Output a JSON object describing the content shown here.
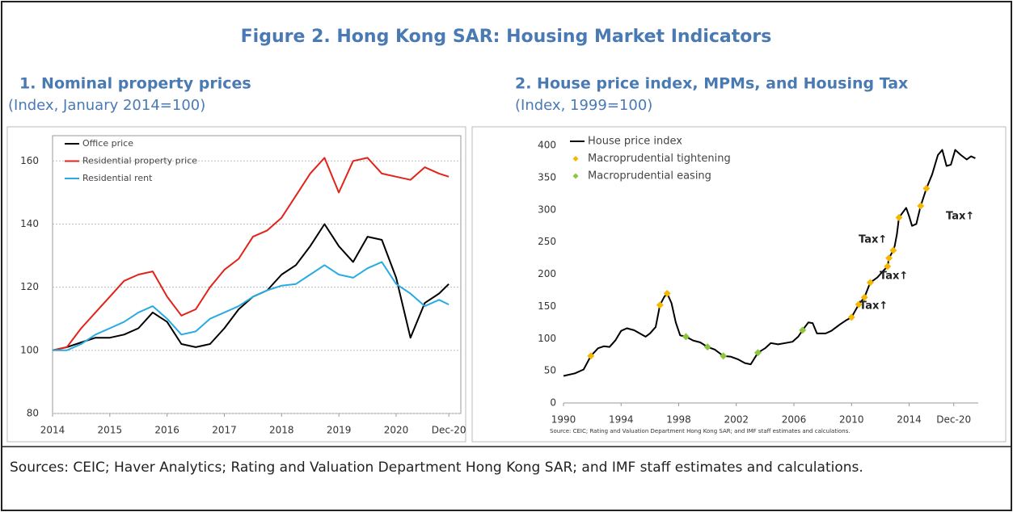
{
  "title": "Figure 2. Hong Kong SAR: Housing Market  Indicators",
  "sources": "Sources: CEIC; Haver Analytics; Rating and Valuation Department Hong Kong SAR; and IMF staff estimates and calculations.",
  "chart_data": [
    {
      "type": "line",
      "title": "1. Nominal property prices",
      "subtitle": "(Index, January 2014=100)",
      "x": [
        2014,
        2014.25,
        2014.5,
        2014.75,
        2015,
        2015.25,
        2015.5,
        2015.75,
        2016,
        2016.25,
        2016.5,
        2016.75,
        2017,
        2017.25,
        2017.5,
        2017.75,
        2018,
        2018.25,
        2018.5,
        2018.75,
        2019,
        2019.25,
        2019.5,
        2019.75,
        2020,
        2020.25,
        2020.5,
        2020.75,
        2020.92
      ],
      "series": [
        {
          "name": "Office price",
          "color": "#000000",
          "values": [
            100,
            101,
            102.5,
            104,
            104,
            105,
            107,
            112,
            109,
            102,
            101,
            102,
            107,
            113,
            117,
            119,
            124,
            127,
            133,
            140,
            133,
            128,
            136,
            135,
            123,
            104,
            115,
            118,
            121
          ]
        },
        {
          "name": "Residential property price",
          "color": "#e2231a",
          "values": [
            100,
            101,
            107,
            112,
            117,
            122,
            124,
            125,
            117,
            111,
            113,
            120,
            125.5,
            129,
            136,
            138,
            142,
            149,
            156,
            161,
            150,
            160,
            161,
            156,
            155,
            154,
            158,
            156,
            155
          ]
        },
        {
          "name": "Residential rent",
          "color": "#29abe2",
          "values": [
            100,
            100,
            102,
            105,
            107,
            109,
            112,
            114,
            110,
            105,
            106,
            110,
            112,
            114,
            117,
            119,
            120.5,
            121,
            124,
            127,
            124,
            123,
            126,
            128,
            121,
            118,
            114,
            116,
            114.5
          ]
        }
      ],
      "xlim": [
        2014,
        2021.13
      ],
      "ylim": [
        80,
        168
      ],
      "xticks": [
        2014,
        2015,
        2016,
        2017,
        2018,
        2019,
        2020,
        {
          "value": 2020.92,
          "label": "Dec-20"
        }
      ],
      "yticks": [
        80,
        100,
        120,
        140,
        160
      ],
      "grid": true,
      "legend": "upper left"
    },
    {
      "type": "line",
      "title": "2. House price index, MPMs, and Housing Tax",
      "subtitle": "(Index, 1999=100)",
      "series": [
        {
          "name": "House price index",
          "color": "#000000",
          "marker": "line",
          "x": [
            1990.0,
            1990.8,
            1991.4,
            1991.9,
            1992.4,
            1992.8,
            1993.2,
            1993.6,
            1994.0,
            1994.4,
            1994.9,
            1995.3,
            1995.7,
            1996.0,
            1996.4,
            1996.7,
            1997.0,
            1997.2,
            1997.5,
            1997.8,
            1998.1,
            1998.5,
            1999.0,
            1999.5,
            2000.0,
            2000.5,
            2001.1,
            2001.6,
            2002.1,
            2002.6,
            2003.0,
            2003.5,
            2004.0,
            2004.4,
            2004.9,
            2005.4,
            2005.9,
            2006.3,
            2006.6,
            2007.0,
            2007.3,
            2007.6,
            2008.2,
            2008.6,
            2009.2,
            2009.6,
            2010.0,
            2010.5,
            2010.9,
            2011.3,
            2011.8,
            2012.2,
            2012.5,
            2012.6,
            2012.9,
            2013.0,
            2013.15,
            2013.3,
            2013.8,
            2014.0,
            2014.2,
            2014.5,
            2014.8,
            2015.2,
            2015.6,
            2016.0,
            2016.3,
            2016.6,
            2016.9,
            2017.2,
            2017.6,
            2018.0,
            2018.3,
            2018.6
          ],
          "values": [
            42,
            46,
            52,
            73,
            85,
            88,
            87,
            97,
            112,
            116,
            113,
            108,
            103,
            108,
            118,
            152,
            165,
            170,
            155,
            125,
            105,
            103,
            97,
            94,
            87,
            83,
            73,
            72,
            68,
            62,
            60,
            78,
            85,
            93,
            91,
            93,
            95,
            103,
            113,
            125,
            124,
            108,
            108,
            112,
            122,
            128,
            133,
            153,
            164,
            187,
            195,
            205,
            212,
            225,
            237,
            244,
            262,
            288,
            303,
            290,
            275,
            278,
            306,
            333,
            355,
            385,
            393,
            368,
            370,
            393,
            385,
            378,
            383,
            380
          ]
        },
        {
          "name": "Macroprudential tightening",
          "color": "#f5b800",
          "marker": "diamond",
          "x": [
            1991.9,
            1996.7,
            1997.2,
            2010.0,
            2010.5,
            2010.9,
            2011.3,
            2012.5,
            2012.6,
            2012.9,
            2013.3,
            2014.8,
            2015.2
          ],
          "values": [
            73,
            152,
            170,
            133,
            153,
            164,
            187,
            212,
            225,
            237,
            288,
            306,
            333
          ]
        },
        {
          "name": "Macroprudential easing",
          "color": "#8dc63f",
          "marker": "diamond",
          "x": [
            1998.5,
            2000.0,
            2001.1,
            2003.5,
            2006.6
          ],
          "values": [
            103,
            87,
            73,
            78,
            113
          ]
        }
      ],
      "annotations": [
        "Tax↑",
        "Tax↑",
        "Tax↑",
        "Tax↑"
      ],
      "note": "Source: CEIC; Rating and Valuation Department Hong Kong SAR; and IMF staff estimates and calculations.",
      "xlim": [
        1990,
        2018.8
      ],
      "ylim": [
        0,
        400
      ],
      "xticks": [
        1990,
        1994,
        1998,
        2002,
        2006,
        2010,
        2014,
        {
          "value": 2017.1,
          "label": "Dec-20"
        }
      ],
      "yticks": [
        0,
        50,
        100,
        150,
        200,
        250,
        300,
        350,
        400
      ],
      "grid": false,
      "legend": "upper left"
    }
  ]
}
